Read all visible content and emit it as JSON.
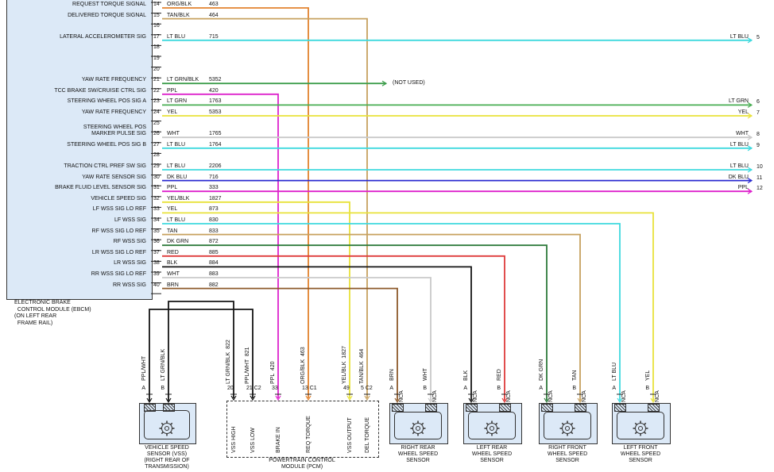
{
  "labels": {
    "not_used": "(NOT USED)"
  },
  "palette": {
    "ORG/BLK": "#e2822e",
    "TAN/BLK": "#c7a15f",
    "LT BLU": "#3fd9de",
    "LT GRN/BLK": "#3f9e4d",
    "PPL": "#dd22cc",
    "LT GRN": "#49ae53",
    "YEL": "#e8e23a",
    "WHT": "#c9c9c9",
    "DK BLU": "#2b2bd0",
    "YEL/BLK": "#e8e23a",
    "TAN": "#c7a15f",
    "DK GRN": "#2e7a3b",
    "RED": "#de3a3a",
    "BLK": "#151515",
    "BRN": "#8d5a2b"
  },
  "ebcm": {
    "label": "ELECTRONIC BRAKE\n  CONTROL MODULE (EBCM)\n(ON LEFT REAR\n  FRAME RAIL)",
    "pins": [
      {
        "num": "14",
        "color": "ORG/BLK",
        "circuit": "463",
        "signal": "REQUEST TORQUE SIGNAL",
        "to": {
          "type": "pcm",
          "pin": 3
        }
      },
      {
        "num": "15",
        "color": "TAN/BLK",
        "circuit": "464",
        "signal": "DELIVERED TORQUE SIGNAL",
        "to": {
          "type": "pcm",
          "pin": 5
        }
      },
      {
        "num": "16"
      },
      {
        "num": "17",
        "color": "LT BLU",
        "circuit": "715",
        "signal": "LATERAL ACCELEROMETER SIG",
        "to": {
          "type": "right",
          "label": "LT BLU",
          "num": "5"
        }
      },
      {
        "num": "18"
      },
      {
        "num": "19"
      },
      {
        "num": "20"
      },
      {
        "num": "21",
        "color": "LT GRN/BLK",
        "circuit": "5352",
        "signal": "YAW RATE FREQUENCY",
        "to": {
          "type": "not_used"
        }
      },
      {
        "num": "22",
        "color": "PPL",
        "circuit": "420",
        "signal": "TCC BRAKE SW/CRUISE CTRL SIG",
        "to": {
          "type": "pcm",
          "pin": 2
        }
      },
      {
        "num": "23",
        "color": "LT GRN",
        "circuit": "1763",
        "signal": "STEERING WHEEL POS SIG A",
        "to": {
          "type": "right",
          "label": "LT GRN",
          "num": "6"
        }
      },
      {
        "num": "24",
        "color": "YEL",
        "circuit": "5353",
        "signal": "YAW RATE FREQUENCY",
        "to": {
          "type": "right",
          "label": "YEL",
          "num": "7"
        }
      },
      {
        "num": "25"
      },
      {
        "num": "26",
        "color": "WHT",
        "circuit": "1765",
        "signal": "STEERING WHEEL POS\nMARKER PULSE SIG",
        "to": {
          "type": "right",
          "label": "WHT",
          "num": "8"
        }
      },
      {
        "num": "27",
        "color": "LT BLU",
        "circuit": "1764",
        "signal": "STEERING WHEEL POS SIG B",
        "to": {
          "type": "right",
          "label": "LT BLU",
          "num": "9"
        }
      },
      {
        "num": "28"
      },
      {
        "num": "29",
        "color": "LT BLU",
        "circuit": "2206",
        "signal": "TRACTION CTRL PREF SW SIG",
        "to": {
          "type": "right",
          "label": "LT BLU",
          "num": "10"
        }
      },
      {
        "num": "30",
        "color": "DK BLU",
        "circuit": "716",
        "signal": "YAW RATE SENSOR SIG",
        "to": {
          "type": "right",
          "label": "DK BLU",
          "num": "11"
        }
      },
      {
        "num": "31",
        "color": "PPL",
        "circuit": "333",
        "signal": "BRAKE FLUID LEVEL SENSOR SIG",
        "to": {
          "type": "right",
          "label": "PPL",
          "num": "12"
        }
      },
      {
        "num": "32",
        "color": "YEL/BLK",
        "circuit": "1827",
        "signal": "VEHICLE SPEED SIG",
        "to": {
          "type": "pcm",
          "pin": 4
        }
      },
      {
        "num": "33",
        "color": "YEL",
        "circuit": "873",
        "signal": "LF WSS SIG LO REF",
        "to": {
          "type": "sensor",
          "sensor": "lf",
          "pin": 1
        }
      },
      {
        "num": "34",
        "color": "LT BLU",
        "circuit": "830",
        "signal": "LF WSS SIG",
        "to": {
          "type": "sensor",
          "sensor": "lf",
          "pin": 0
        }
      },
      {
        "num": "35",
        "color": "TAN",
        "circuit": "833",
        "signal": "RF WSS SIG LO REF",
        "to": {
          "type": "sensor",
          "sensor": "rf",
          "pin": 1
        }
      },
      {
        "num": "36",
        "color": "DK GRN",
        "circuit": "872",
        "signal": "RF WSS SIG",
        "to": {
          "type": "sensor",
          "sensor": "rf",
          "pin": 0
        }
      },
      {
        "num": "37",
        "color": "RED",
        "circuit": "885",
        "signal": "LR WSS SIG LO REF",
        "to": {
          "type": "sensor",
          "sensor": "lr",
          "pin": 1
        }
      },
      {
        "num": "38",
        "color": "BLK",
        "circuit": "884",
        "signal": "LR WSS SIG",
        "to": {
          "type": "sensor",
          "sensor": "lr",
          "pin": 0
        }
      },
      {
        "num": "39",
        "color": "WHT",
        "circuit": "883",
        "signal": "RR WSS SIG LO REF",
        "to": {
          "type": "sensor",
          "sensor": "rr",
          "pin": 1
        }
      },
      {
        "num": "40",
        "color": "BRN",
        "circuit": "882",
        "signal": "RR WSS SIG",
        "to": {
          "type": "sensor",
          "sensor": "rr",
          "pin": 0
        }
      }
    ]
  },
  "pcm": {
    "label": "POWERTRAIN CONTROL\nMODULE (PCM)",
    "pins": [
      {
        "num": "20",
        "name": "VSS HIGH",
        "wire_label": "LT GRN/BLK  822"
      },
      {
        "num": "21 C2",
        "name": "VSS LOW",
        "wire_label": "PPL/WHT  821"
      },
      {
        "num": "33",
        "name": "BRAKE IN",
        "wire_label": "PPL  420"
      },
      {
        "num": "13 C1",
        "name": "REQ TORQUE",
        "wire_label": "ORG/BLK  463"
      },
      {
        "num": "49",
        "name": "VSS OUTPUT",
        "wire_label": "YEL/BLK  1827"
      },
      {
        "num": "5 C2",
        "name": "DEL TORQUE",
        "wire_label": "TAN/BLK  464"
      }
    ]
  },
  "vss": {
    "label": "VEHICLE SPEED\nSENSOR (VSS)\n(RIGHT REAR OF\nTRANSMISSION)",
    "pins": [
      {
        "letter": "A",
        "wire_label": "PPL/WHT"
      },
      {
        "letter": "B",
        "wire_label": "LT GRN/BLK"
      }
    ]
  },
  "sensors": [
    {
      "id": "rr",
      "label": "RIGHT REAR\nWHEEL SPEED\nSENSOR",
      "pins": [
        {
          "letter": "A",
          "color_label": "BRN",
          "nca": "NCA"
        },
        {
          "letter": "B",
          "color_label": "WHT",
          "nca": "NCA"
        }
      ]
    },
    {
      "id": "lr",
      "label": "LEFT REAR\nWHEEL SPEED\nSENSOR",
      "pins": [
        {
          "letter": "A",
          "color_label": "BLK",
          "nca": "NCA"
        },
        {
          "letter": "B",
          "color_label": "RED",
          "nca": "NCA"
        }
      ]
    },
    {
      "id": "rf",
      "label": "RIGHT FRONT\nWHEEL SPEED\nSENSOR",
      "pins": [
        {
          "letter": "A",
          "color_label": "DK GRN",
          "nca": "NCA"
        },
        {
          "letter": "B",
          "color_label": "TAN",
          "nca": "NCA"
        }
      ]
    },
    {
      "id": "lf",
      "label": "LEFT FRONT\nWHEEL SPEED\nSENSOR",
      "pins": [
        {
          "letter": "A",
          "color_label": "LT BLU",
          "nca": "NCA"
        },
        {
          "letter": "B",
          "color_label": "YEL",
          "nca": "NCA"
        }
      ]
    }
  ]
}
